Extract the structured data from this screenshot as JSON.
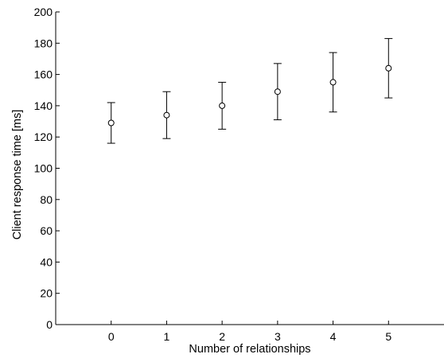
{
  "chart_data": {
    "type": "scatter",
    "title": "",
    "xlabel": "Number of relationships",
    "ylabel": "Client response time [ms]",
    "xlim": [
      -1,
      6
    ],
    "ylim": [
      0,
      200
    ],
    "x_ticks": [
      0,
      1,
      2,
      3,
      4,
      5
    ],
    "y_ticks": [
      0,
      20,
      40,
      60,
      80,
      100,
      120,
      140,
      160,
      180,
      200
    ],
    "grid": false,
    "marker": "circle",
    "points": [
      {
        "x": 0,
        "y": 129,
        "err_low": 116,
        "err_high": 142
      },
      {
        "x": 1,
        "y": 134,
        "err_low": 119,
        "err_high": 149
      },
      {
        "x": 2,
        "y": 140,
        "err_low": 125,
        "err_high": 155
      },
      {
        "x": 3,
        "y": 149,
        "err_low": 131,
        "err_high": 167
      },
      {
        "x": 4,
        "y": 155,
        "err_low": 136,
        "err_high": 174
      },
      {
        "x": 5,
        "y": 164,
        "err_low": 145,
        "err_high": 183
      }
    ]
  }
}
